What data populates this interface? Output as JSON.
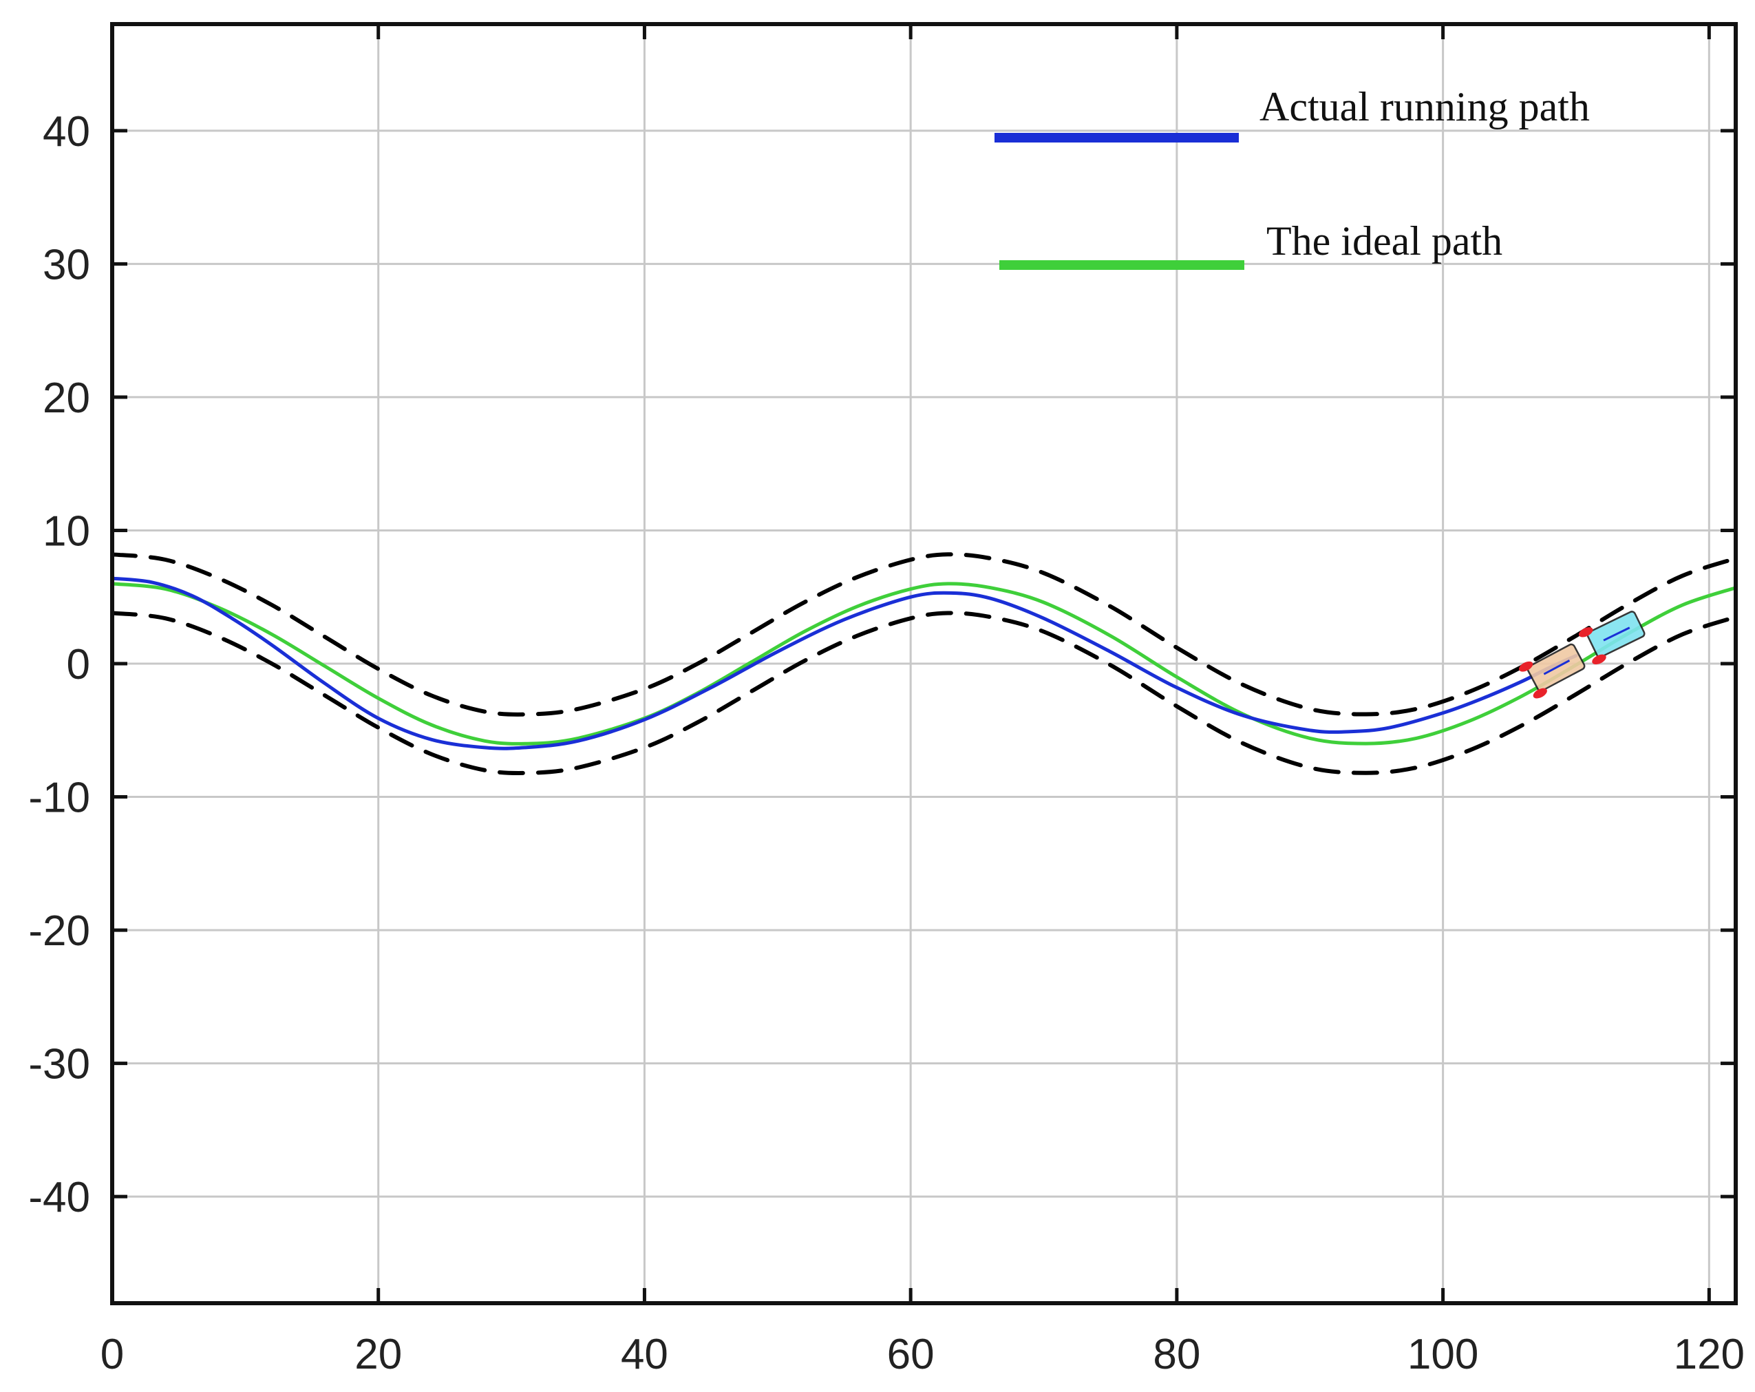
{
  "chart_data": {
    "type": "line",
    "title": "",
    "xlabel": "",
    "ylabel": "",
    "xlim": [
      0,
      122
    ],
    "ylim": [
      -48,
      48
    ],
    "grid": true,
    "legend_position": "top-right",
    "x_ticks": [
      0,
      20,
      40,
      60,
      80,
      100,
      120
    ],
    "y_ticks": [
      -40,
      -30,
      -20,
      -10,
      0,
      10,
      20,
      30,
      40
    ],
    "x_tick_labels": [
      "0",
      "20",
      "40",
      "60",
      "80",
      "100",
      "120"
    ],
    "y_tick_labels": [
      "-40",
      "-30",
      "-20",
      "-10",
      "0",
      "10",
      "20",
      "30",
      "40"
    ],
    "series": [
      {
        "name": "Actual running path",
        "color": "#1a2fd6",
        "x": [
          0,
          3,
          6,
          9,
          12,
          16,
          20,
          24,
          28,
          31,
          35,
          40,
          45,
          50,
          55,
          60,
          63,
          66,
          70,
          75,
          80,
          85,
          90,
          93,
          96,
          100,
          103,
          106,
          108,
          110
        ],
        "y": [
          6.4,
          6.1,
          5.1,
          3.4,
          1.4,
          -1.5,
          -4.1,
          -5.7,
          -6.3,
          -6.3,
          -5.8,
          -4.2,
          -1.8,
          0.9,
          3.3,
          5.0,
          5.3,
          4.9,
          3.4,
          0.9,
          -1.8,
          -3.9,
          -5.0,
          -5.1,
          -4.8,
          -3.7,
          -2.6,
          -1.3,
          -0.3,
          0.6
        ]
      },
      {
        "name": "The ideal path",
        "color": "#3fcf3a",
        "x": [
          0,
          4,
          8,
          12,
          16,
          20,
          24,
          28,
          31.4,
          35,
          40,
          44,
          48,
          52,
          56,
          60,
          62.8,
          66,
          70,
          75,
          80,
          85,
          90,
          94.2,
          98,
          102,
          106,
          110,
          114,
          118,
          122
        ],
        "y": [
          6.0,
          5.6,
          4.2,
          2.2,
          -0.2,
          -2.6,
          -4.6,
          -5.8,
          -6.0,
          -5.6,
          -4.1,
          -2.2,
          0.1,
          2.4,
          4.3,
          5.6,
          6.0,
          5.7,
          4.6,
          2.1,
          -1.0,
          -3.8,
          -5.6,
          -6.0,
          -5.6,
          -4.3,
          -2.4,
          -0.1,
          2.3,
          4.4,
          5.7
        ]
      },
      {
        "name": "",
        "color": "#000000",
        "dashed": true,
        "x": [
          0,
          4,
          8,
          12,
          16,
          20,
          24,
          28,
          31.4,
          35,
          40,
          44,
          48,
          52,
          56,
          60,
          62.8,
          66,
          70,
          75,
          80,
          85,
          90,
          94.2,
          98,
          102,
          106,
          110,
          114,
          118,
          122
        ],
        "y": [
          8.2,
          7.8,
          6.4,
          4.4,
          2.0,
          -0.4,
          -2.4,
          -3.6,
          -3.8,
          -3.4,
          -1.9,
          0.0,
          2.3,
          4.6,
          6.5,
          7.8,
          8.2,
          7.9,
          6.8,
          4.3,
          1.2,
          -1.6,
          -3.4,
          -3.8,
          -3.4,
          -2.1,
          -0.2,
          2.1,
          4.5,
          6.6,
          7.9
        ]
      },
      {
        "name": "",
        "color": "#000000",
        "dashed": true,
        "x": [
          0,
          4,
          8,
          12,
          16,
          20,
          24,
          28,
          31.4,
          35,
          40,
          44,
          48,
          52,
          56,
          60,
          62.8,
          66,
          70,
          75,
          80,
          85,
          90,
          94.2,
          98,
          102,
          106,
          110,
          114,
          118,
          122
        ],
        "y": [
          3.8,
          3.4,
          2.0,
          0.0,
          -2.4,
          -4.8,
          -6.8,
          -8.0,
          -8.2,
          -7.8,
          -6.3,
          -4.4,
          -2.1,
          0.2,
          2.1,
          3.4,
          3.8,
          3.5,
          2.4,
          -0.1,
          -3.2,
          -6.0,
          -7.8,
          -8.2,
          -7.8,
          -6.5,
          -4.6,
          -2.3,
          0.1,
          2.2,
          3.5
        ]
      }
    ],
    "vehicles": [
      {
        "name": "rear-vehicle",
        "x": 108.5,
        "y": -0.3,
        "heading_deg": 28,
        "fill": "#f0c9a4"
      },
      {
        "name": "front-vehicle",
        "x": 113,
        "y": 2.2,
        "heading_deg": 26,
        "fill": "#7fe3f0"
      }
    ]
  }
}
